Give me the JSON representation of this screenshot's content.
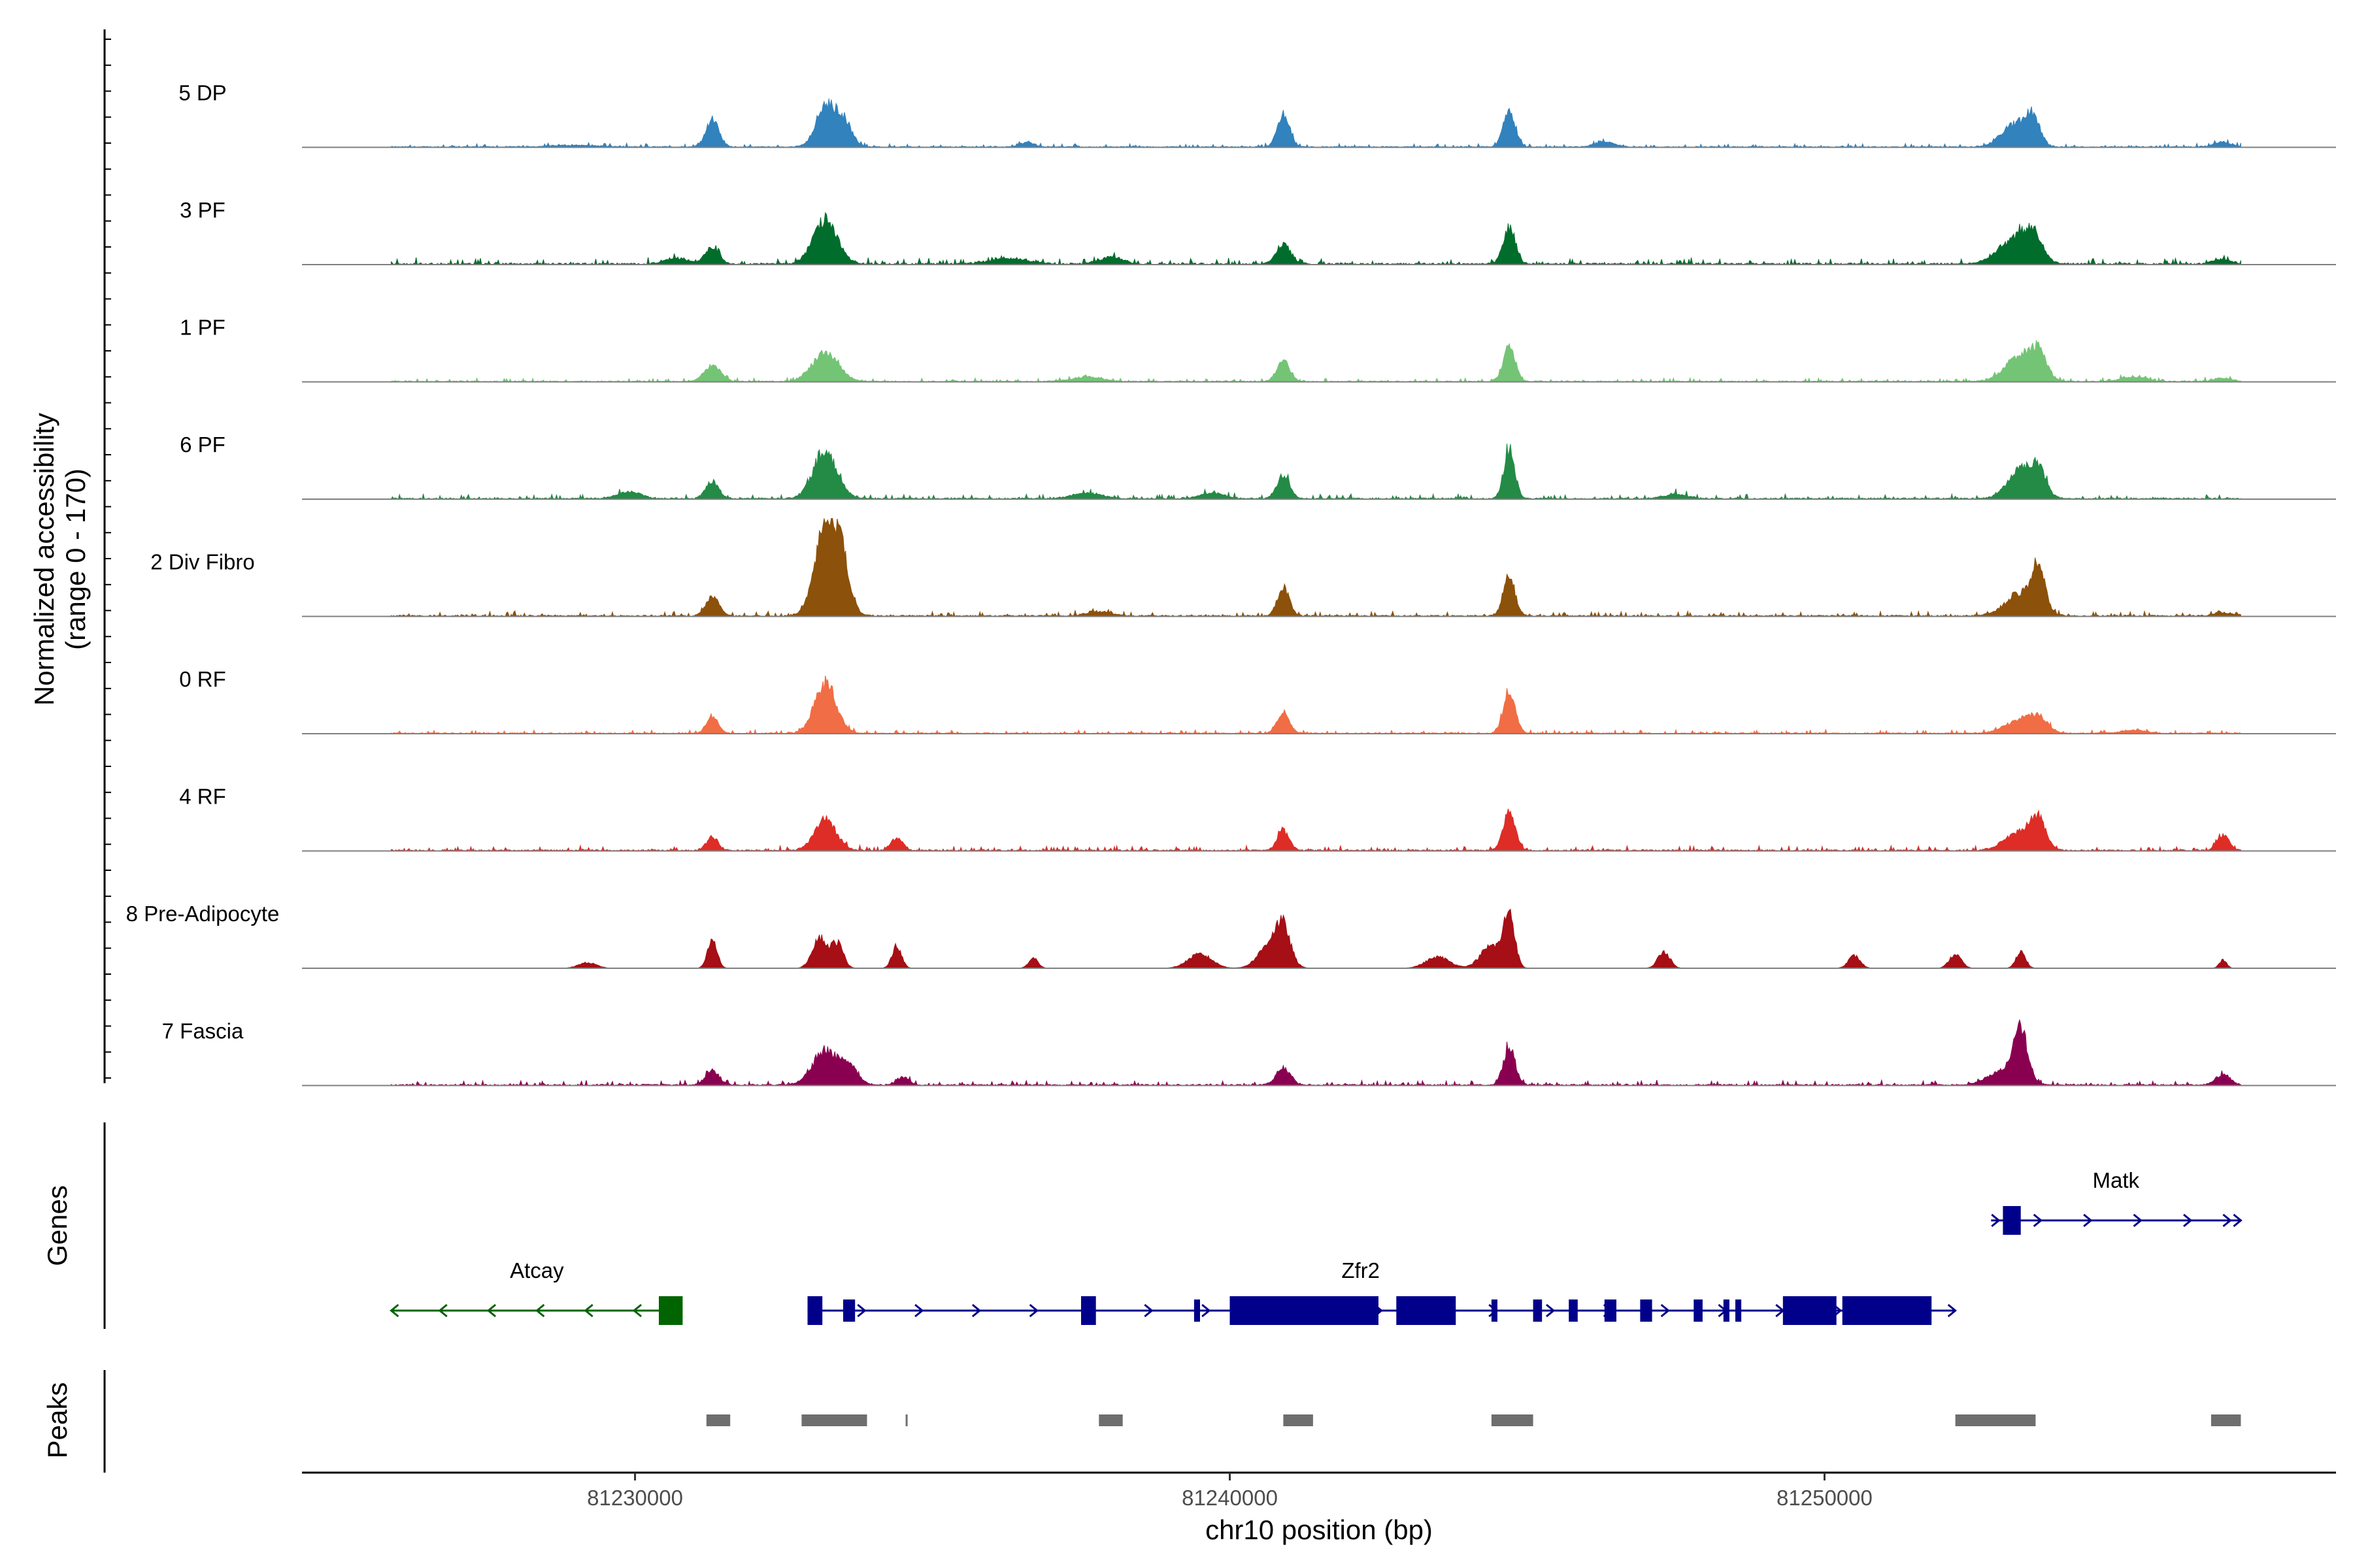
{
  "chart_data": {
    "type": "area",
    "title": "",
    "xlabel": "chr10 position (bp)",
    "ylabel_line1": "Normalized accessibility",
    "ylabel_line2": "(range 0 - 170)",
    "ylim": [
      0,
      170
    ],
    "xlim": [
      81224400,
      81258600
    ],
    "data_extent": [
      81225900,
      81257000
    ],
    "xticks": [
      81230000,
      81240000,
      81250000
    ],
    "xtick_labels": [
      "81230000",
      "81240000",
      "81250000"
    ],
    "panel_labels": {
      "genes": "Genes",
      "peaks": "Peaks"
    },
    "series": [
      {
        "name": "5 DP",
        "color": "#3182bd",
        "noise": 3,
        "peaks": [
          [
            81231300,
            48,
            110
          ],
          [
            81233200,
            70,
            160
          ],
          [
            81233500,
            45,
            140
          ],
          [
            81240900,
            60,
            100
          ],
          [
            81244700,
            66,
            100
          ],
          [
            81253200,
            40,
            220
          ],
          [
            81253500,
            45,
            120
          ],
          [
            81236600,
            8,
            120
          ],
          [
            81246300,
            10,
            150
          ],
          [
            81229000,
            3,
            400
          ],
          [
            81256700,
            8,
            150
          ]
        ]
      },
      {
        "name": "3 PF",
        "color": "#006d2c",
        "noise": 5,
        "peaks": [
          [
            81231300,
            28,
            120
          ],
          [
            81233200,
            78,
            200
          ],
          [
            81240900,
            35,
            120
          ],
          [
            81244700,
            65,
            100
          ],
          [
            81253200,
            42,
            280
          ],
          [
            81253500,
            40,
            150
          ],
          [
            81230700,
            10,
            200
          ],
          [
            81236300,
            10,
            300
          ],
          [
            81238000,
            12,
            200
          ],
          [
            81256700,
            8,
            150
          ]
        ]
      },
      {
        "name": "1 PF",
        "color": "#74c476",
        "noise": 3,
        "peaks": [
          [
            81231300,
            28,
            140
          ],
          [
            81233200,
            50,
            220
          ],
          [
            81240900,
            35,
            110
          ],
          [
            81244700,
            62,
            100
          ],
          [
            81253300,
            45,
            250
          ],
          [
            81253600,
            40,
            130
          ],
          [
            81237600,
            8,
            250
          ],
          [
            81255200,
            8,
            200
          ],
          [
            81256700,
            6,
            150
          ]
        ]
      },
      {
        "name": "6 PF",
        "color": "#238b45",
        "noise": 4,
        "peaks": [
          [
            81231300,
            30,
            110
          ],
          [
            81233200,
            85,
            200
          ],
          [
            81240900,
            40,
            110
          ],
          [
            81244700,
            90,
            90
          ],
          [
            81253300,
            50,
            220
          ],
          [
            81253600,
            40,
            130
          ],
          [
            81229900,
            12,
            200
          ],
          [
            81237600,
            10,
            250
          ],
          [
            81239700,
            10,
            200
          ],
          [
            81247500,
            8,
            200
          ]
        ]
      },
      {
        "name": "2 Div Fibro",
        "color": "#8c510a",
        "noise": 4,
        "peaks": [
          [
            81231300,
            35,
            110
          ],
          [
            81233200,
            150,
            180
          ],
          [
            81233450,
            90,
            150
          ],
          [
            81240900,
            50,
            100
          ],
          [
            81244700,
            65,
            100
          ],
          [
            81253300,
            40,
            250
          ],
          [
            81253600,
            75,
            110
          ],
          [
            81237800,
            8,
            200
          ],
          [
            81256700,
            6,
            150
          ]
        ]
      },
      {
        "name": "0 RF",
        "color": "#f16d45",
        "noise": 3,
        "peaks": [
          [
            81231300,
            28,
            100
          ],
          [
            81233200,
            90,
            180
          ],
          [
            81240900,
            38,
            100
          ],
          [
            81244700,
            75,
            100
          ],
          [
            81253300,
            25,
            250
          ],
          [
            81253600,
            22,
            150
          ],
          [
            81255200,
            6,
            200
          ]
        ]
      },
      {
        "name": "4 RF",
        "color": "#de2d26",
        "noise": 4,
        "peaks": [
          [
            81231300,
            22,
            100
          ],
          [
            81233200,
            55,
            180
          ],
          [
            81234400,
            22,
            100
          ],
          [
            81240900,
            35,
            100
          ],
          [
            81244700,
            72,
            100
          ],
          [
            81253300,
            35,
            250
          ],
          [
            81253600,
            45,
            120
          ],
          [
            81256700,
            28,
            100
          ]
        ]
      },
      {
        "name": "8 Pre-Adipocyte",
        "color": "#a50f15",
        "noise": 0,
        "peaks": [
          [
            81231300,
            50,
            80
          ],
          [
            81233100,
            55,
            120
          ],
          [
            81233400,
            45,
            100
          ],
          [
            81234400,
            40,
            80
          ],
          [
            81240700,
            45,
            200
          ],
          [
            81240900,
            55,
            120
          ],
          [
            81239500,
            25,
            200
          ],
          [
            81244400,
            40,
            180
          ],
          [
            81244700,
            95,
            90
          ],
          [
            81243500,
            20,
            200
          ],
          [
            81247300,
            30,
            100
          ],
          [
            81250500,
            22,
            100
          ],
          [
            81252200,
            25,
            100
          ],
          [
            81253300,
            30,
            80
          ],
          [
            81229200,
            10,
            150
          ],
          [
            81236700,
            18,
            80
          ],
          [
            81256700,
            15,
            60
          ]
        ]
      },
      {
        "name": "7 Fascia",
        "color": "#8a0051",
        "noise": 4,
        "peaks": [
          [
            81231300,
            28,
            110
          ],
          [
            81233200,
            60,
            220
          ],
          [
            81233600,
            28,
            150
          ],
          [
            81240900,
            30,
            120
          ],
          [
            81244700,
            65,
            100
          ],
          [
            81253300,
            90,
            120
          ],
          [
            81253000,
            25,
            250
          ],
          [
            81256700,
            18,
            120
          ],
          [
            81234500,
            14,
            100
          ]
        ]
      }
    ],
    "genes": [
      {
        "name": "Atcay",
        "color": "#006400",
        "strand": "-",
        "start": 81225900,
        "end": 81230800,
        "row": 2,
        "exons": [
          [
            81230400,
            81230800
          ]
        ]
      },
      {
        "name": "Zfr2",
        "color": "#00008b",
        "strand": "+",
        "start": 81232900,
        "end": 81252200,
        "row": 2,
        "exons": [
          [
            81232900,
            81233150
          ],
          [
            81233500,
            81233700
          ],
          [
            81237500,
            81237750
          ],
          [
            81239400,
            81239500
          ],
          [
            81240000,
            81242500
          ],
          [
            81242800,
            81243800
          ],
          [
            81244400,
            81244500
          ],
          [
            81245100,
            81245250
          ],
          [
            81245700,
            81245850
          ],
          [
            81246300,
            81246500
          ],
          [
            81246900,
            81247100
          ],
          [
            81247800,
            81247950
          ],
          [
            81248300,
            81248400
          ],
          [
            81248500,
            81248600
          ],
          [
            81249300,
            81250200
          ],
          [
            81250300,
            81251800
          ]
        ]
      },
      {
        "name": "Matk",
        "color": "#00008b",
        "strand": "+",
        "start": 81252800,
        "end": 81257000,
        "row": 1,
        "exons": [
          [
            81253000,
            81253300
          ]
        ]
      }
    ],
    "peak_regions": [
      [
        81231200,
        81231600
      ],
      [
        81232800,
        81233900
      ],
      [
        81234550,
        81234580
      ],
      [
        81237800,
        81238200
      ],
      [
        81240900,
        81241400
      ],
      [
        81244400,
        81245100
      ],
      [
        81252200,
        81253550
      ],
      [
        81256500,
        81257000
      ]
    ]
  }
}
